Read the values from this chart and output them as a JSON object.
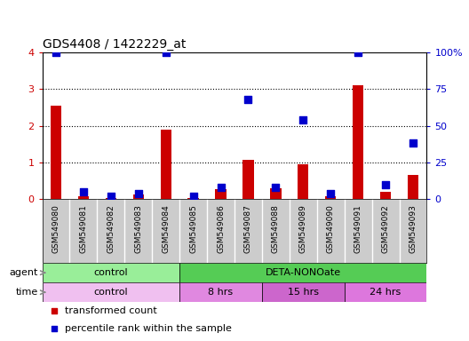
{
  "title": "GDS4408 / 1422229_at",
  "samples": [
    "GSM549080",
    "GSM549081",
    "GSM549082",
    "GSM549083",
    "GSM549084",
    "GSM549085",
    "GSM549086",
    "GSM549087",
    "GSM549088",
    "GSM549089",
    "GSM549090",
    "GSM549091",
    "GSM549092",
    "GSM549093"
  ],
  "transformed_count": [
    2.55,
    0.08,
    0.04,
    0.12,
    1.9,
    0.03,
    0.28,
    1.07,
    0.3,
    0.95,
    0.07,
    3.1,
    0.2,
    0.65
  ],
  "percentile_rank": [
    100,
    5,
    2,
    4,
    100,
    2,
    8,
    68,
    8,
    54,
    4,
    100,
    10,
    38
  ],
  "bar_color": "#cc0000",
  "dot_color": "#0000cc",
  "ylim_left": [
    0,
    4
  ],
  "ylim_right": [
    0,
    100
  ],
  "yticks_left": [
    0,
    1,
    2,
    3,
    4
  ],
  "yticks_right": [
    0,
    25,
    50,
    75,
    100
  ],
  "yticklabels_right": [
    "0",
    "25",
    "50",
    "75",
    "100%"
  ],
  "agent_row": [
    {
      "label": "control",
      "start": 0,
      "end": 5,
      "color": "#99ee99"
    },
    {
      "label": "DETA-NONOate",
      "start": 5,
      "end": 14,
      "color": "#55cc55"
    }
  ],
  "time_row": [
    {
      "label": "control",
      "start": 0,
      "end": 5,
      "color": "#f0c0f0"
    },
    {
      "label": "8 hrs",
      "start": 5,
      "end": 8,
      "color": "#e088e0"
    },
    {
      "label": "15 hrs",
      "start": 8,
      "end": 11,
      "color": "#cc66cc"
    },
    {
      "label": "24 hrs",
      "start": 11,
      "end": 14,
      "color": "#dd77dd"
    }
  ],
  "legend_items": [
    {
      "label": "transformed count",
      "color": "#cc0000"
    },
    {
      "label": "percentile rank within the sample",
      "color": "#0000cc"
    }
  ],
  "left_tick_color": "#cc0000",
  "right_tick_color": "#0000cc",
  "bar_width": 0.4,
  "dot_size": 30,
  "sample_bg_color": "#cccccc",
  "agent_label": "agent",
  "time_label": "time"
}
